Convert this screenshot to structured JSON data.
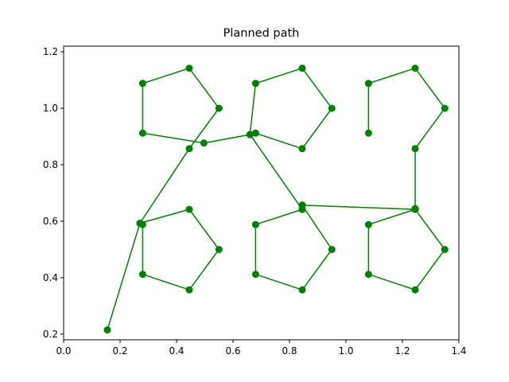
{
  "chart_data": {
    "type": "line",
    "title": "Planned path",
    "xlabel": "",
    "ylabel": "",
    "xlim": [
      0.0,
      1.4
    ],
    "ylim": [
      0.18,
      1.22
    ],
    "x_ticks": [
      "0.0",
      "0.2",
      "0.4",
      "0.6",
      "0.8",
      "1.0",
      "1.2",
      "1.4"
    ],
    "y_ticks": [
      "0.2",
      "0.4",
      "0.6",
      "0.8",
      "1.0",
      "1.2"
    ],
    "x_tick_values": [
      0.0,
      0.2,
      0.4,
      0.6,
      0.8,
      1.0,
      1.2,
      1.4
    ],
    "y_tick_values": [
      0.2,
      0.4,
      0.6,
      0.8,
      1.0,
      1.2
    ],
    "grid": false,
    "legend": "none",
    "series": [
      {
        "color": "#008000",
        "marker": "circle",
        "points": [
          [
            0.155,
            0.215
          ],
          [
            0.27,
            0.593
          ],
          [
            0.28,
            0.588
          ],
          [
            0.28,
            0.412
          ],
          [
            0.445,
            0.357
          ],
          [
            0.55,
            0.5
          ],
          [
            0.445,
            0.642
          ],
          [
            0.27,
            0.593
          ],
          [
            0.445,
            0.857
          ],
          [
            0.55,
            1.0
          ],
          [
            0.445,
            1.142
          ],
          [
            0.28,
            1.088
          ],
          [
            0.28,
            0.912
          ],
          [
            0.497,
            0.877
          ],
          [
            0.66,
            0.907
          ],
          [
            0.68,
            1.088
          ],
          [
            0.845,
            1.142
          ],
          [
            0.95,
            1.0
          ],
          [
            0.845,
            0.857
          ],
          [
            0.68,
            0.912
          ],
          [
            0.66,
            0.907
          ],
          [
            0.845,
            0.642
          ],
          [
            0.845,
            0.657
          ],
          [
            1.245,
            0.642
          ],
          [
            1.35,
            0.5
          ],
          [
            1.245,
            0.357
          ],
          [
            1.08,
            0.412
          ],
          [
            1.08,
            0.588
          ],
          [
            1.245,
            0.642
          ],
          [
            1.245,
            0.645
          ],
          [
            1.245,
            0.857
          ],
          [
            1.35,
            1.0
          ],
          [
            1.245,
            1.142
          ],
          [
            1.08,
            1.088
          ],
          [
            1.08,
            0.912
          ]
        ]
      },
      {
        "color": "#008000",
        "marker": "circle",
        "points": [
          [
            0.845,
            0.657
          ],
          [
            0.95,
            0.5
          ],
          [
            0.845,
            0.357
          ],
          [
            0.68,
            0.412
          ],
          [
            0.68,
            0.588
          ],
          [
            0.845,
            0.642
          ]
        ]
      }
    ]
  }
}
